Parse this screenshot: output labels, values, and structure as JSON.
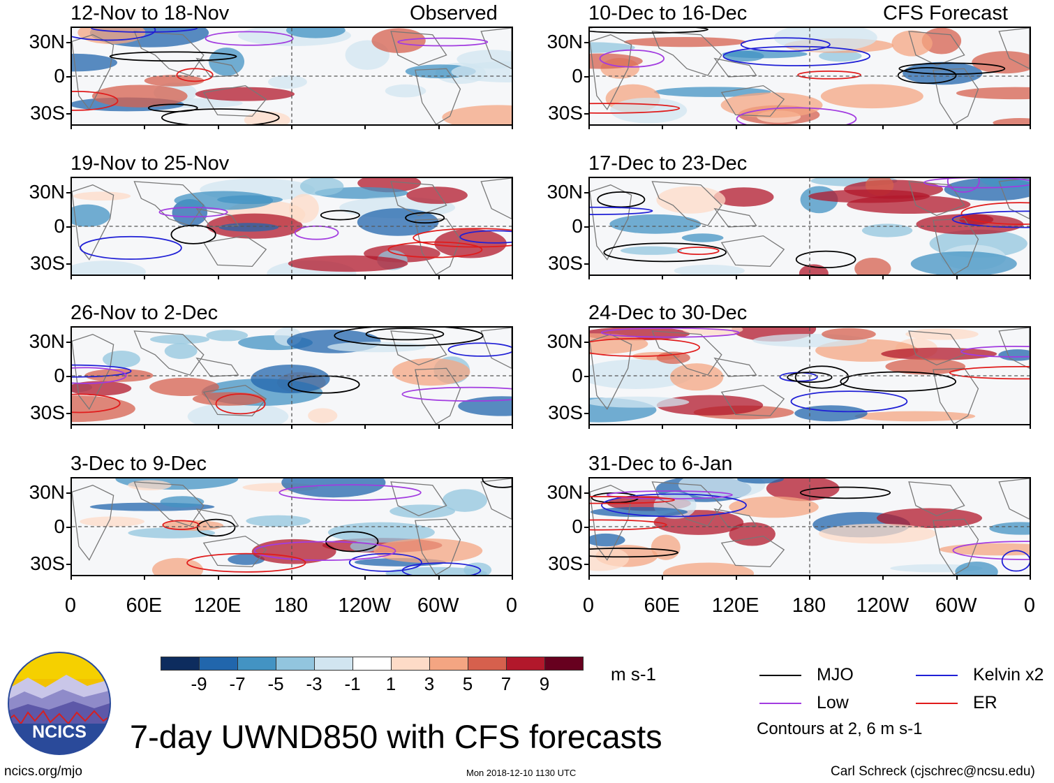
{
  "figure": {
    "title": "7-day UWND850 with CFS forecasts",
    "site": "ncics.org/mjo",
    "timestamp": "Mon 2018-12-10 1130 UTC",
    "author": "Carl Schreck (cjschrec@ncsu.edu)",
    "logo_text": "NCICS"
  },
  "column_headers": {
    "left": "Observed",
    "right": "CFS Forecast"
  },
  "panels": [
    {
      "title": "12-Nov to 18-Nov",
      "column": "Observed"
    },
    {
      "title": "19-Nov to 25-Nov",
      "column": "Observed"
    },
    {
      "title": "26-Nov to 2-Dec",
      "column": "Observed"
    },
    {
      "title": "3-Dec to 9-Dec",
      "column": "Observed"
    },
    {
      "title": "10-Dec to 16-Dec",
      "column": "CFS Forecast"
    },
    {
      "title": "17-Dec to 23-Dec",
      "column": "CFS Forecast"
    },
    {
      "title": "24-Dec to 30-Dec",
      "column": "CFS Forecast"
    },
    {
      "title": "31-Dec to 6-Jan",
      "column": "CFS Forecast"
    }
  ],
  "y_ticks": [
    "30N",
    "0",
    "30S"
  ],
  "x_ticks": [
    "0",
    "60E",
    "120E",
    "180",
    "120W",
    "60W",
    "0"
  ],
  "colorbar": {
    "unit": "m s-1",
    "labels": [
      "-9",
      "-7",
      "-5",
      "-3",
      "-1",
      "1",
      "3",
      "5",
      "7",
      "9"
    ],
    "colors": [
      "#0d2c5e",
      "#2166ac",
      "#4393c3",
      "#92c5de",
      "#d1e5f0",
      "#ffffff",
      "#fddbc7",
      "#f4a582",
      "#d6604d",
      "#b2182b",
      "#67001f"
    ]
  },
  "legend": {
    "items": [
      {
        "label": "MJO",
        "color": "#000000"
      },
      {
        "label": "Kelvin x2",
        "color": "#1f1fd6"
      },
      {
        "label": "Low",
        "color": "#a23be0"
      },
      {
        "label": "ER",
        "color": "#e01b1b"
      }
    ],
    "note": "Contours at 2, 6 m s-1"
  }
}
